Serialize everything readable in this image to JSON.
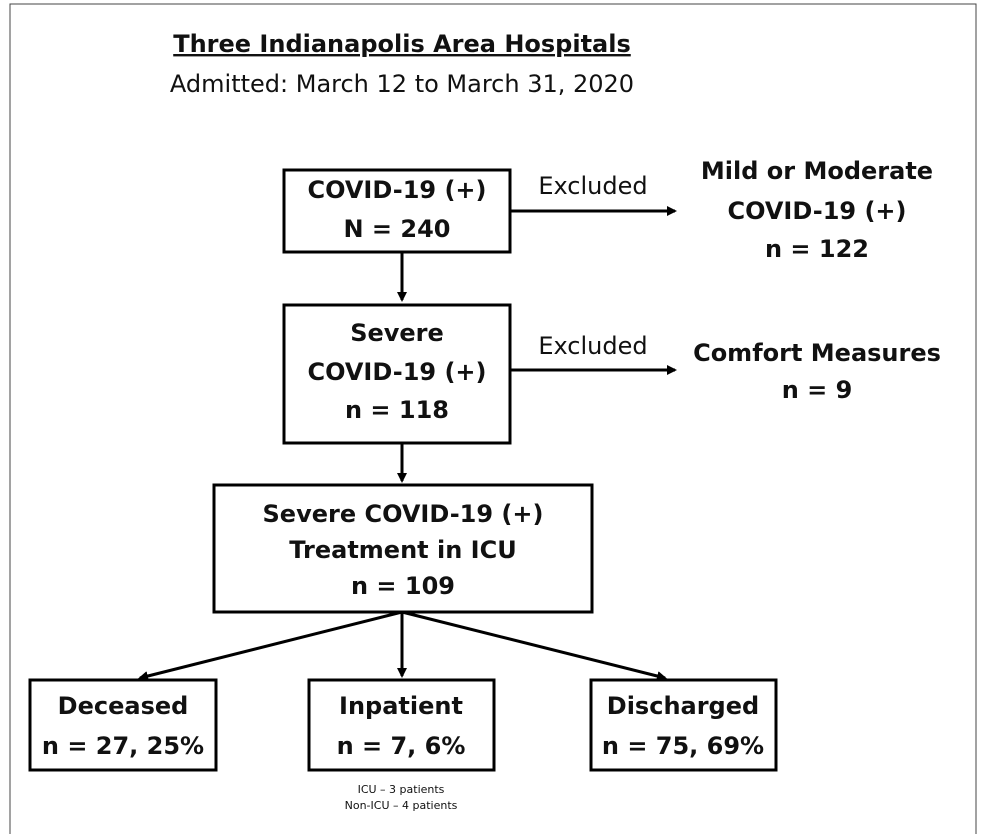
{
  "header": {
    "title": "Three Indianapolis Area Hospitals",
    "subtitle": "Admitted: March 12 to March 31, 2020"
  },
  "nodes": [
    {
      "lines": [
        "COVID-19 (+)",
        "N = 240"
      ]
    },
    {
      "lines": [
        "Mild or Moderate",
        "COVID-19 (+)",
        "n = 122"
      ]
    },
    {
      "lines": [
        "Severe",
        "COVID-19 (+)",
        "n = 118"
      ]
    },
    {
      "lines": [
        "Comfort Measures",
        "n = 9"
      ]
    },
    {
      "lines": [
        "Severe COVID-19 (+)",
        "Treatment in ICU",
        "n = 109"
      ]
    },
    {
      "lines": [
        "Deceased",
        "n = 27, 25%"
      ]
    },
    {
      "lines": [
        "Inpatient",
        "n = 7, 6%"
      ]
    },
    {
      "lines": [
        "Discharged",
        "n = 75, 69%"
      ]
    }
  ],
  "edges": [
    {
      "label": "Excluded"
    },
    {
      "label": "Excluded"
    }
  ],
  "footnote": [
    "ICU – 3 patients",
    "Non-ICU – 4 patients"
  ]
}
